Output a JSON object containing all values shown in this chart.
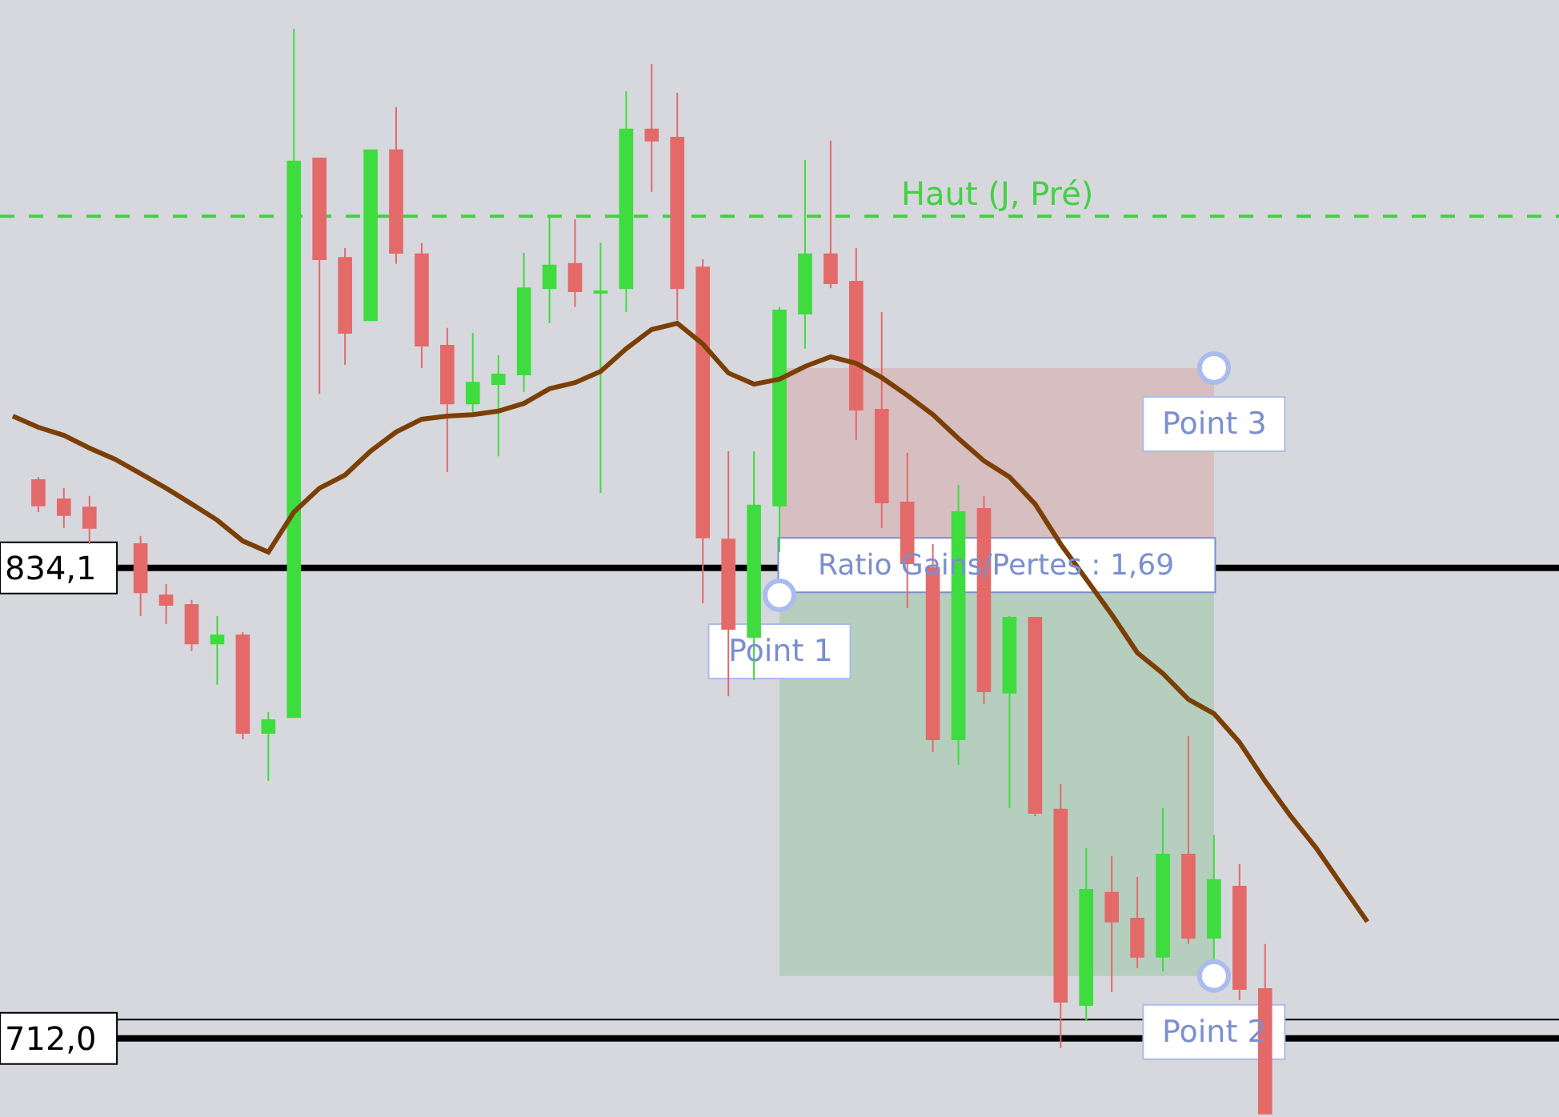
{
  "chart_data": {
    "type": "candlestick",
    "categories": [
      null,
      null,
      null,
      null,
      null,
      null,
      null,
      null,
      null,
      null,
      null,
      null,
      null,
      null,
      null,
      null,
      null,
      null,
      null,
      null,
      null,
      null,
      null,
      null,
      null,
      null,
      null,
      null,
      null,
      null,
      null,
      null,
      null,
      null,
      null,
      null,
      null,
      null,
      null,
      null,
      null,
      null,
      null,
      null,
      null,
      null,
      null,
      null,
      null,
      null,
      null,
      null,
      null,
      null,
      null,
      null,
      null,
      null,
      null,
      null,
      null
    ],
    "ohlc": [
      null,
      [
        856.9,
        857.7,
        848.6,
        850.3
      ],
      [
        851.9,
        854.8,
        844.5,
        847.8
      ],
      [
        849.8,
        852.8,
        840.3,
        844.5
      ],
      null,
      [
        840.3,
        842.4,
        821.6,
        827.8
      ],
      [
        827.0,
        829.9,
        819.5,
        824.5
      ],
      [
        824.5,
        825.8,
        812.5,
        814.5
      ],
      [
        814.5,
        821.6,
        803.8,
        816.6
      ],
      [
        816.6,
        817.5,
        789.6,
        791.3
      ],
      [
        791.3,
        796.7,
        778.8,
        794.6
      ],
      [
        795.4,
        974.0,
        795.4,
        939.6
      ],
      [
        940.4,
        940.4,
        879.3,
        914.2
      ],
      [
        914.6,
        917.1,
        886.8,
        895.1
      ],
      [
        898.4,
        942.5,
        898.4,
        942.5
      ],
      [
        942.5,
        953.7,
        913.0,
        915.9
      ],
      [
        915.5,
        918.4,
        886.0,
        891.8
      ],
      [
        891.8,
        896.4,
        859.0,
        876.8
      ],
      [
        876.8,
        895.1,
        874.4,
        882.2
      ],
      [
        881.8,
        889.3,
        863.1,
        884.3
      ],
      [
        884.3,
        915.9,
        879.8,
        906.7
      ],
      [
        906.7,
        925.4,
        897.6,
        912.6
      ],
      [
        913.0,
        924.6,
        901.8,
        905.9
      ],
      [
        905.5,
        918.4,
        853.6,
        905.9
      ],
      [
        906.7,
        957.8,
        900.5,
        947.9
      ],
      [
        947.9,
        964.9,
        931.7,
        945.0
      ],
      [
        945.8,
        957.4,
        898.4,
        906.7
      ],
      [
        912.1,
        914.2,
        824.9,
        842.0
      ],
      [
        841.5,
        864.4,
        800.8,
        818.3
      ],
      [
        816.2,
        864.4,
        805.0,
        850.3
      ],
      [
        850.3,
        901.8,
        838.2,
        900.9
      ],
      [
        900.1,
        940.0,
        891.0,
        915.5
      ],
      [
        915.5,
        945.0,
        906.7,
        908.0
      ],
      [
        908.4,
        917.1,
        867.3,
        875.2
      ],
      [
        875.2,
        900.5,
        844.5,
        851.1
      ],
      [
        851.1,
        864.0,
        823.7,
        835.3
      ],
      [
        834.1,
        840.3,
        786.3,
        789.6
      ],
      [
        789.6,
        855.7,
        783.0,
        848.6
      ],
      [
        849.4,
        852.8,
        798.8,
        802.1
      ],
      [
        801.7,
        821.6,
        771.8,
        821.2
      ],
      [
        821.2,
        821.2,
        769.7,
        770.5
      ],
      [
        771.4,
        778.0,
        709.5,
        721.5
      ],
      [
        720.7,
        761.4,
        716.5,
        750.6
      ],
      [
        749.8,
        759.3,
        724.0,
        742.3
      ],
      [
        743.1,
        753.9,
        730.2,
        733.2
      ],
      [
        733.2,
        771.8,
        729.4,
        759.7
      ],
      [
        759.7,
        790.5,
        736.5,
        738.1
      ],
      [
        738.1,
        764.7,
        732.3,
        753.1
      ],
      [
        751.4,
        757.2,
        721.9,
        724.8
      ],
      [
        724.8,
        736.5,
        692.5,
        692.5
      ],
      null,
      null,
      null,
      null,
      null,
      null,
      null,
      null,
      null,
      null,
      null
    ],
    "colors": [
      null,
      "#e46a6a",
      "#e46a6a",
      "#e46a6a",
      null,
      "#e46a6a",
      "#e46a6a",
      "#e46a6a",
      "#3fdc3f",
      "#e46a6a",
      "#3fdc3f",
      "#3fdc3f",
      "#e46a6a",
      "#e46a6a",
      "#3fdc3f",
      "#e46a6a",
      "#e46a6a",
      "#e46a6a",
      "#3fdc3f",
      "#3fdc3f",
      "#3fdc3f",
      "#3fdc3f",
      "#e46a6a",
      "#3fdc3f",
      "#3fdc3f",
      "#e46a6a",
      "#e46a6a",
      "#e46a6a",
      "#e46a6a",
      "#3fdc3f",
      "#3fdc3f",
      "#3fdc3f",
      "#e46a6a",
      "#e46a6a",
      "#e46a6a",
      "#e46a6a",
      "#e46a6a",
      "#3fdc3f",
      "#e46a6a",
      "#3fdc3f",
      "#e46a6a",
      "#e46a6a",
      "#3fdc3f",
      "#e46a6a",
      "#e46a6a",
      "#3fdc3f",
      "#e46a6a",
      "#3fdc3f",
      "#e46a6a",
      "#e46a6a",
      null,
      null,
      null,
      null,
      null,
      null,
      null,
      null,
      null,
      null,
      null
    ],
    "series": [
      {
        "type": "line",
        "color": "#7b3f06",
        "values": [
          873.5,
          870.6,
          868.5,
          865.2,
          862.3,
          858.6,
          854.8,
          850.7,
          846.5,
          841.1,
          838.2,
          848.6,
          854.8,
          858.2,
          864.4,
          869.4,
          872.7,
          873.5,
          873.9,
          874.8,
          876.8,
          880.6,
          882.2,
          885.1,
          891.0,
          896.0,
          897.6,
          892.2,
          884.7,
          881.8,
          883.1,
          886.4,
          888.9,
          887.2,
          883.5,
          878.9,
          873.9,
          867.7,
          861.9,
          857.7,
          850.7,
          840.3,
          831.2,
          822.0,
          812.1,
          806.7,
          800.0,
          796.3,
          788.8,
          778.8,
          769.7,
          761.4,
          751.8,
          742.3,
          null,
          null,
          null,
          null,
          null,
          null,
          null
        ]
      },
      {
        "type": "scatter",
        "color": "#aabbee",
        "values": [
          null,
          null,
          null,
          null,
          null,
          null,
          null,
          null,
          null,
          null,
          null,
          null,
          null,
          null,
          null,
          null,
          null,
          null,
          null,
          null,
          null,
          null,
          null,
          null,
          null,
          null,
          null,
          null,
          null,
          null,
          827.0,
          null,
          null,
          null,
          null,
          null,
          null,
          null,
          null,
          null,
          null,
          null,
          null,
          null,
          null,
          null,
          null,
          886.0,
          null,
          null,
          null,
          null,
          null,
          null,
          null,
          null,
          null,
          null,
          null,
          null,
          null
        ]
      },
      {
        "type": "scatter",
        "color": "#aabbee",
        "values": [
          null,
          null,
          null,
          null,
          null,
          null,
          null,
          null,
          null,
          null,
          null,
          null,
          null,
          null,
          null,
          null,
          null,
          null,
          null,
          null,
          null,
          null,
          null,
          null,
          null,
          null,
          null,
          null,
          null,
          null,
          null,
          null,
          null,
          null,
          null,
          null,
          null,
          null,
          null,
          null,
          null,
          null,
          null,
          null,
          null,
          null,
          null,
          728.2,
          null,
          null,
          null,
          null,
          null,
          null,
          null,
          null,
          null,
          null,
          null,
          null,
          null
        ]
      }
    ],
    "ylim": [
      691.6,
      981.5
    ],
    "yticks": [
      {
        "value": 834.1,
        "label": "834,1"
      },
      {
        "value": 712.0,
        "label": "712,0"
      }
    ],
    "tick_labels": "y",
    "grid": false,
    "ref_lines": [
      {
        "axis": "y",
        "value": 925.4,
        "label": "Haut (J, Pré)",
        "color": "#44d044",
        "line_style": "dashed"
      },
      {
        "axis": "y",
        "value": 834.1,
        "label": null,
        "color": "#000000",
        "line_style": "solid"
      },
      {
        "axis": "y",
        "value": 716.9,
        "label": null,
        "color": "#000000",
        "line_style": "solid"
      },
      {
        "axis": "y",
        "value": 712.0,
        "label": null,
        "color": "#000000",
        "line_style": "solid"
      }
    ],
    "bands": [
      {
        "axis": "y",
        "from": 834.1,
        "to": 886.0,
        "label": null,
        "color": "#d9a0a0"
      },
      {
        "axis": "y",
        "from": 728.2,
        "to": 827.8,
        "label": "Ratio Gains/Pertes : 1,69",
        "color": "#8fc49a"
      }
    ],
    "annotations": [
      {
        "text": "Point 1",
        "y": 827.0
      },
      {
        "text": "Point 2",
        "y": 728.2
      },
      {
        "text": "Point 3",
        "y": 886.0
      }
    ]
  }
}
